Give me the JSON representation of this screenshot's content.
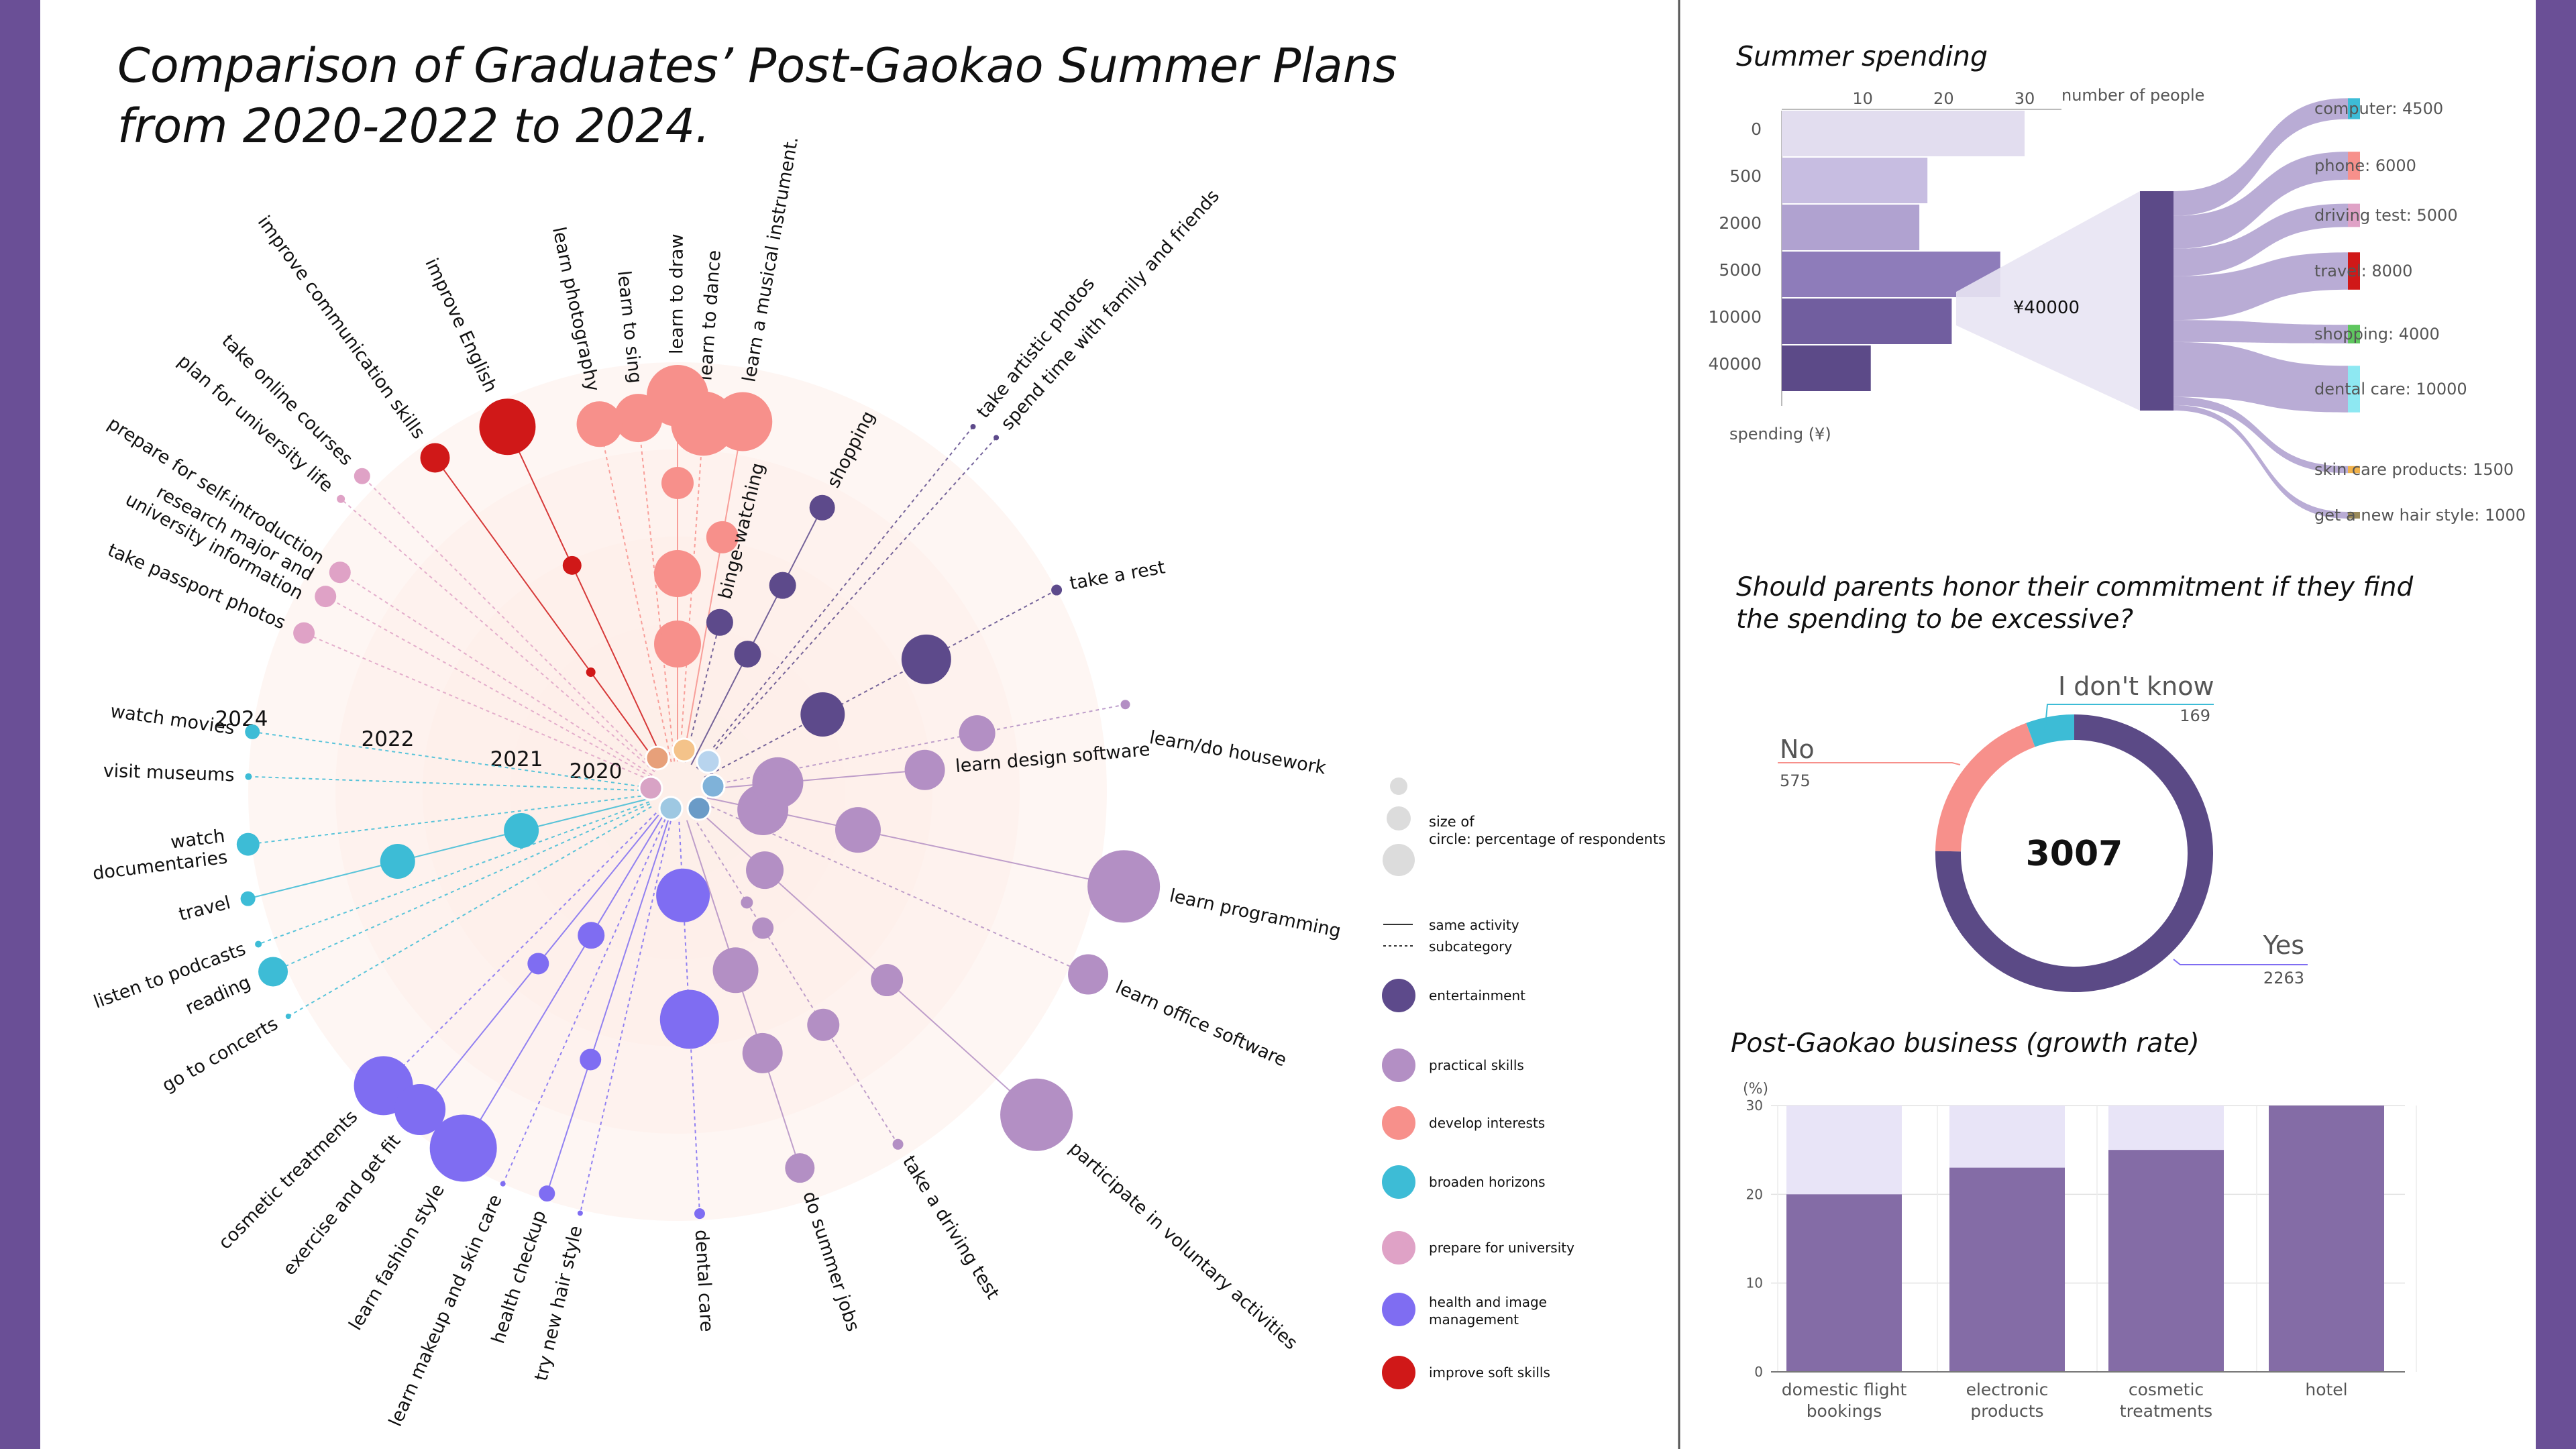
{
  "colors": {
    "frame": "#6a4f96",
    "halo": "#fdeee9",
    "entertainment": "#5d4a8b",
    "practical": "#b38fc4",
    "interests": "#f7908b",
    "horizons": "#3dbcd6",
    "university": "#dfa2c6",
    "health": "#7f6df2",
    "soft": "#d01818",
    "spend_bar": "#8c6fb0",
    "bar_light": "#e8e4f7",
    "bar_dark": "#846ca6",
    "donut_yes": "#5b4a86",
    "donut_no": "#f7908b",
    "donut_dk": "#3dbcd6"
  },
  "main": {
    "title": "Comparison of Graduates’ Post-Gaokao Summer Plans from 2020-2022 to 2024.",
    "rings": [
      "2024",
      "2022",
      "2021",
      "2020"
    ]
  },
  "legend": {
    "size_label": "size of circle: percentage of respondents",
    "line_same": "same activity",
    "line_sub": "subcategory",
    "items": [
      {
        "key": "entertainment",
        "label": "entertainment",
        "color": "#5d4a8b"
      },
      {
        "key": "practical",
        "label": "practical skills",
        "color": "#b38fc4"
      },
      {
        "key": "interests",
        "label": "develop interests",
        "color": "#f7908b"
      },
      {
        "key": "horizons",
        "label": "broaden horizons",
        "color": "#3dbcd6"
      },
      {
        "key": "university",
        "label": "prepare for university",
        "color": "#dfa2c6"
      },
      {
        "key": "health",
        "label": "health and image management",
        "color": "#7f6df2"
      },
      {
        "key": "soft",
        "label": "improve soft skills",
        "color": "#d01818"
      }
    ]
  },
  "chart_data": [
    {
      "type": "radial-bubble",
      "title": "Comparison of Graduates’ Post-Gaokao Summer Plans from 2020-2022 to 2024.",
      "rings": [
        "2020",
        "2021",
        "2022",
        "2024"
      ],
      "activities": [
        {
          "label": "learn a musical instrument.",
          "category": "develop interests"
        },
        {
          "label": "learn to dance",
          "category": "develop interests"
        },
        {
          "label": "learn to draw",
          "category": "develop interests"
        },
        {
          "label": "learn to sing",
          "category": "develop interests"
        },
        {
          "label": "learn photography",
          "category": "develop interests"
        },
        {
          "label": "improve English",
          "category": "improve soft skills"
        },
        {
          "label": "improve communication skills",
          "category": "improve soft skills"
        },
        {
          "label": "take online courses",
          "category": "prepare for university"
        },
        {
          "label": "plan for university life",
          "category": "prepare for university"
        },
        {
          "label": "prepare for self-introduction",
          "category": "prepare for university"
        },
        {
          "label": "research major and university information",
          "category": "prepare for university"
        },
        {
          "label": "take passport photos",
          "category": "prepare for university"
        },
        {
          "label": "watch movies",
          "category": "broaden horizons"
        },
        {
          "label": "visit museums",
          "category": "broaden horizons"
        },
        {
          "label": "watch documentaries",
          "category": "broaden horizons"
        },
        {
          "label": "travel",
          "category": "broaden horizons"
        },
        {
          "label": "listen to podcasts",
          "category": "broaden horizons"
        },
        {
          "label": "reading",
          "category": "broaden horizons"
        },
        {
          "label": "go to concerts",
          "category": "broaden horizons"
        },
        {
          "label": "cosmetic treatments",
          "category": "health and image management"
        },
        {
          "label": "exercise and get fit",
          "category": "health and image management"
        },
        {
          "label": "learn fashion style",
          "category": "health and image management"
        },
        {
          "label": "learn makeup and skin care",
          "category": "health and image management"
        },
        {
          "label": "health checkup",
          "category": "health and image management"
        },
        {
          "label": "try new hair style",
          "category": "health and image management"
        },
        {
          "label": "dental care",
          "category": "health and image management"
        },
        {
          "label": "do summer jobs",
          "category": "practical skills"
        },
        {
          "label": "take a driving test",
          "category": "practical skills"
        },
        {
          "label": "participate in voluntary activities",
          "category": "practical skills"
        },
        {
          "label": "learn office software",
          "category": "practical skills"
        },
        {
          "label": "learn programming",
          "category": "practical skills"
        },
        {
          "label": "learn design software",
          "category": "practical skills"
        },
        {
          "label": "learn/do housework",
          "category": "practical skills"
        },
        {
          "label": "take a rest",
          "category": "entertainment"
        },
        {
          "label": "spend time with family and friends",
          "category": "entertainment"
        },
        {
          "label": "take artistic photos",
          "category": "entertainment"
        },
        {
          "label": "shopping",
          "category": "entertainment"
        },
        {
          "label": "binge-watching",
          "category": "entertainment"
        }
      ]
    },
    {
      "type": "bar",
      "title": "Summer spending",
      "orientation": "horizontal",
      "xlabel": "number of people",
      "ylabel": "spending (¥)",
      "xticks": [
        10,
        20,
        30
      ],
      "categories": [
        "0",
        "500",
        "2000",
        "5000",
        "10000",
        "40000"
      ],
      "values": [
        30,
        18,
        17,
        27,
        21,
        11
      ]
    },
    {
      "type": "sankey",
      "source": "¥40000",
      "flows": [
        {
          "label": "computer",
          "value": 4500,
          "color": "#3dbcd6"
        },
        {
          "label": "phone",
          "value": 6000,
          "color": "#f7908b"
        },
        {
          "label": "driving test",
          "value": 5000,
          "color": "#dfa2c6"
        },
        {
          "label": "travel",
          "value": 8000,
          "color": "#d01818"
        },
        {
          "label": "shopping",
          "value": 4000,
          "color": "#5fc65f"
        },
        {
          "label": "dental care",
          "value": 10000,
          "color": "#8ee8f2"
        },
        {
          "label": "skin care products",
          "value": 1500,
          "color": "#f2b24a"
        },
        {
          "label": "get a new hair style",
          "value": 1000,
          "color": "#9a8a5a"
        }
      ]
    },
    {
      "type": "pie",
      "title": "Should parents honor their commitment if they find the spending to be excessive?",
      "center_label": "3007",
      "slices": [
        {
          "label": "Yes",
          "value": 2263,
          "color": "#5b4a86"
        },
        {
          "label": "No",
          "value": 575,
          "color": "#f7908b"
        },
        {
          "label": "I don't know",
          "value": 169,
          "color": "#3dbcd6"
        }
      ]
    },
    {
      "type": "bar",
      "title": "Post-Gaokao business (growth rate)",
      "ylabel": "(%)",
      "ylim": [
        0,
        30
      ],
      "yticks": [
        0,
        10,
        20,
        30
      ],
      "categories": [
        "domestic flight bookings",
        "electronic products",
        "cosmetic treatments",
        "hotel"
      ],
      "values": [
        20,
        23,
        25,
        30
      ]
    }
  ]
}
